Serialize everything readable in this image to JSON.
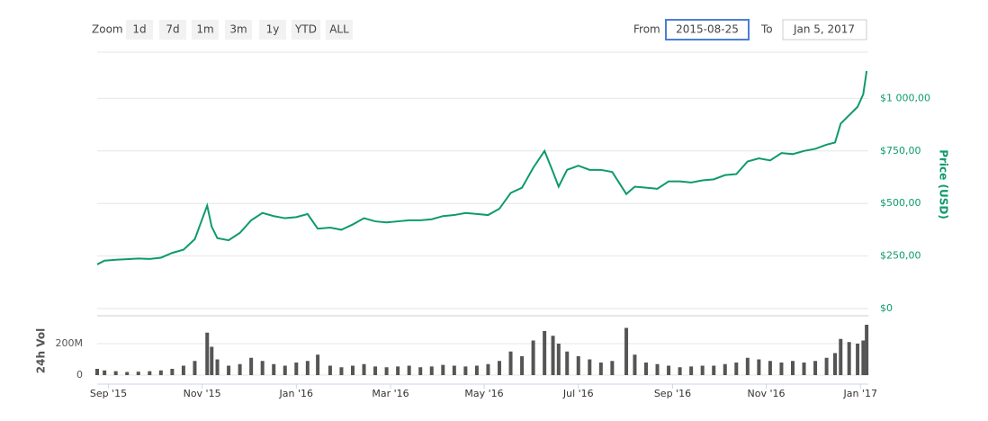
{
  "range_selector": {
    "zoom_label": "Zoom",
    "buttons": [
      "1d",
      "7d",
      "1m",
      "3m",
      "1y",
      "YTD",
      "ALL"
    ],
    "from_label": "From",
    "from": "2015-08-25",
    "to_label": "To",
    "to": "Jan 5, 2017"
  },
  "chart_data": {
    "type": "line",
    "ylabel": "Price (USD)",
    "y2label": "24h Vol",
    "x": [
      2015.647,
      2015.66,
      2015.68,
      2015.7,
      2015.72,
      2015.74,
      2015.76,
      2015.78,
      2015.8,
      2015.82,
      2015.842,
      2015.85,
      2015.86,
      2015.88,
      2015.9,
      2015.92,
      2015.94,
      2015.96,
      2015.98,
      2016.0,
      2016.02,
      2016.038,
      2016.06,
      2016.08,
      2016.1,
      2016.12,
      2016.14,
      2016.16,
      2016.18,
      2016.2,
      2016.22,
      2016.24,
      2016.26,
      2016.28,
      2016.3,
      2016.32,
      2016.34,
      2016.36,
      2016.38,
      2016.4,
      2016.42,
      2016.44,
      2016.455,
      2016.465,
      2016.48,
      2016.5,
      2016.52,
      2016.54,
      2016.56,
      2016.585,
      2016.6,
      2016.62,
      2016.64,
      2016.66,
      2016.68,
      2016.7,
      2016.72,
      2016.74,
      2016.76,
      2016.78,
      2016.8,
      2016.82,
      2016.84,
      2016.86,
      2016.88,
      2016.9,
      2016.92,
      2016.94,
      2016.955,
      2016.965,
      2016.98,
      2016.995,
      2017.005,
      2017.011
    ],
    "series": [
      {
        "name": "Price",
        "color": "#0e9a6e",
        "values": [
          210,
          228,
          232,
          235,
          238,
          236,
          242,
          265,
          280,
          330,
          490,
          390,
          335,
          325,
          360,
          420,
          455,
          440,
          430,
          435,
          450,
          380,
          385,
          375,
          400,
          430,
          415,
          410,
          415,
          420,
          420,
          425,
          440,
          445,
          455,
          450,
          445,
          475,
          550,
          575,
          670,
          750,
          650,
          580,
          660,
          680,
          660,
          660,
          650,
          545,
          580,
          575,
          570,
          605,
          605,
          600,
          610,
          615,
          635,
          640,
          700,
          715,
          705,
          740,
          735,
          750,
          760,
          780,
          790,
          880,
          920,
          960,
          1020,
          1130
        ]
      },
      {
        "name": "24h Vol",
        "color": "#555555",
        "axis": "y2",
        "values": [
          40000000,
          30000000,
          25000000,
          20000000,
          22000000,
          25000000,
          30000000,
          40000000,
          60000000,
          90000000,
          270000000,
          180000000,
          100000000,
          60000000,
          70000000,
          110000000,
          90000000,
          70000000,
          60000000,
          80000000,
          90000000,
          130000000,
          60000000,
          50000000,
          60000000,
          70000000,
          55000000,
          50000000,
          55000000,
          60000000,
          50000000,
          55000000,
          65000000,
          60000000,
          55000000,
          60000000,
          70000000,
          90000000,
          150000000,
          120000000,
          220000000,
          280000000,
          250000000,
          200000000,
          150000000,
          120000000,
          100000000,
          80000000,
          90000000,
          300000000,
          130000000,
          80000000,
          70000000,
          60000000,
          50000000,
          55000000,
          60000000,
          60000000,
          70000000,
          80000000,
          110000000,
          100000000,
          90000000,
          80000000,
          90000000,
          80000000,
          90000000,
          110000000,
          140000000,
          230000000,
          210000000,
          200000000,
          220000000,
          320000000
        ]
      }
    ],
    "xlim": [
      2015.647,
      2017.014
    ],
    "xticks": [
      {
        "value": 2015.667,
        "label": "Sep '15"
      },
      {
        "value": 2015.833,
        "label": "Nov '15"
      },
      {
        "value": 2016.0,
        "label": "Jan '16"
      },
      {
        "value": 2016.167,
        "label": "Mar '16"
      },
      {
        "value": 2016.333,
        "label": "May '16"
      },
      {
        "value": 2016.5,
        "label": "Jul '16"
      },
      {
        "value": 2016.667,
        "label": "Sep '16"
      },
      {
        "value": 2016.833,
        "label": "Nov '16"
      },
      {
        "value": 2017.0,
        "label": "Jan '17"
      }
    ],
    "ylim": [
      0,
      1250
    ],
    "yticks": [
      {
        "value": 0,
        "label": "$0"
      },
      {
        "value": 250,
        "label": "$250,00"
      },
      {
        "value": 500,
        "label": "$500,00"
      },
      {
        "value": 750,
        "label": "$750,00"
      },
      {
        "value": 1000,
        "label": "$1 000,00"
      }
    ],
    "y2lim": [
      0,
      400000000
    ],
    "y2ticks": [
      0,
      {
        "value": 200000000,
        "label": "200M"
      }
    ],
    "grid": true
  }
}
